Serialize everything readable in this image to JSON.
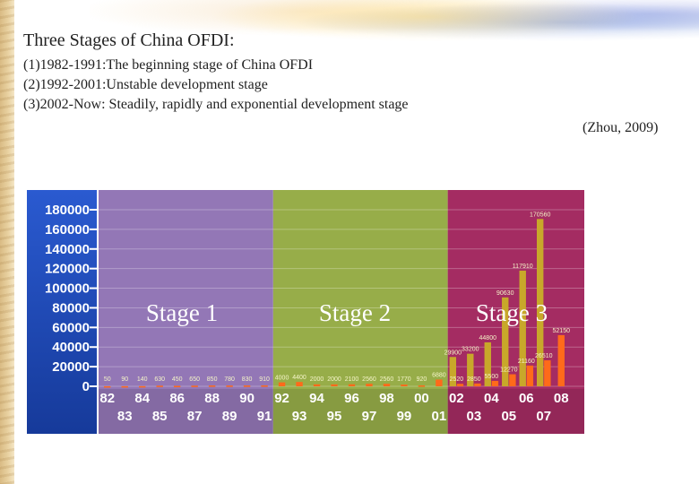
{
  "slide": {
    "title": "Three Stages of China OFDI:",
    "stages": [
      "(1)1982-1991:The beginning stage of China OFDI",
      "(2)1992-2001:Unstable development stage",
      "(3)2002-Now: Steadily, rapidly and exponential development stage"
    ],
    "citation": "(Zhou, 2009)"
  },
  "chart_data": {
    "type": "bar",
    "colors": {
      "axis_panel": "#1e4fbf",
      "stage1": "#8a6bb0",
      "stage2": "#8ea63a",
      "stage3": "#9c1a55",
      "bar_primary": "#c8a82a",
      "bar_secondary": "#ff6a1a",
      "tick_text": "#ffffff"
    },
    "ylim": [
      0,
      180000
    ],
    "y_ticks": [
      "180000",
      "160000",
      "140000",
      "120000",
      "100000",
      "80000",
      "60000",
      "40000",
      "20000",
      "0"
    ],
    "x_labels_upper": [
      "82",
      "84",
      "86",
      "88",
      "90",
      "92",
      "94",
      "96",
      "98",
      "00",
      "02",
      "04",
      "06",
      "08"
    ],
    "x_labels_lower": [
      "83",
      "85",
      "87",
      "89",
      "91",
      "93",
      "95",
      "97",
      "99",
      "01",
      "03",
      "05",
      "07"
    ],
    "stages": [
      {
        "label": "Stage 1",
        "from_index": 0,
        "to_index": 9
      },
      {
        "label": "Stage 2",
        "from_index": 10,
        "to_index": 19
      },
      {
        "label": "Stage 3",
        "from_index": 20,
        "to_index": 26
      }
    ],
    "categories": [
      "82",
      "83",
      "84",
      "85",
      "86",
      "87",
      "88",
      "89",
      "90",
      "91",
      "92",
      "93",
      "94",
      "95",
      "96",
      "97",
      "98",
      "99",
      "00",
      "01",
      "02",
      "03",
      "04",
      "05",
      "06",
      "07",
      "08"
    ],
    "bar_labels": [
      "50",
      "90",
      "140",
      "630",
      "450",
      "650",
      "850",
      "780",
      "830",
      "910",
      "4000",
      "4400",
      "2000",
      "2000",
      "2100",
      "2560",
      "2560",
      "1770",
      "920",
      "6880",
      "2520",
      "2850",
      "5500",
      "12270",
      "21160",
      "26510",
      "52150"
    ],
    "series": [
      {
        "values": [
          50,
          90,
          140,
          630,
          450,
          650,
          850,
          780,
          830,
          910,
          4000,
          4400,
          2000,
          2000,
          2100,
          2560,
          2560,
          1770,
          920,
          6880,
          2520,
          2850,
          5500,
          12270,
          21160,
          26510,
          52150
        ]
      },
      {
        "values": [
          null,
          null,
          null,
          null,
          null,
          null,
          null,
          null,
          null,
          null,
          null,
          null,
          null,
          null,
          null,
          null,
          null,
          null,
          null,
          null,
          29900,
          33200,
          44800,
          90630,
          117910,
          170560,
          null
        ]
      }
    ],
    "top_labels": [
      "29900",
      "33200",
      "44800",
      "90630",
      "117910",
      "170560"
    ],
    "grid": true
  }
}
